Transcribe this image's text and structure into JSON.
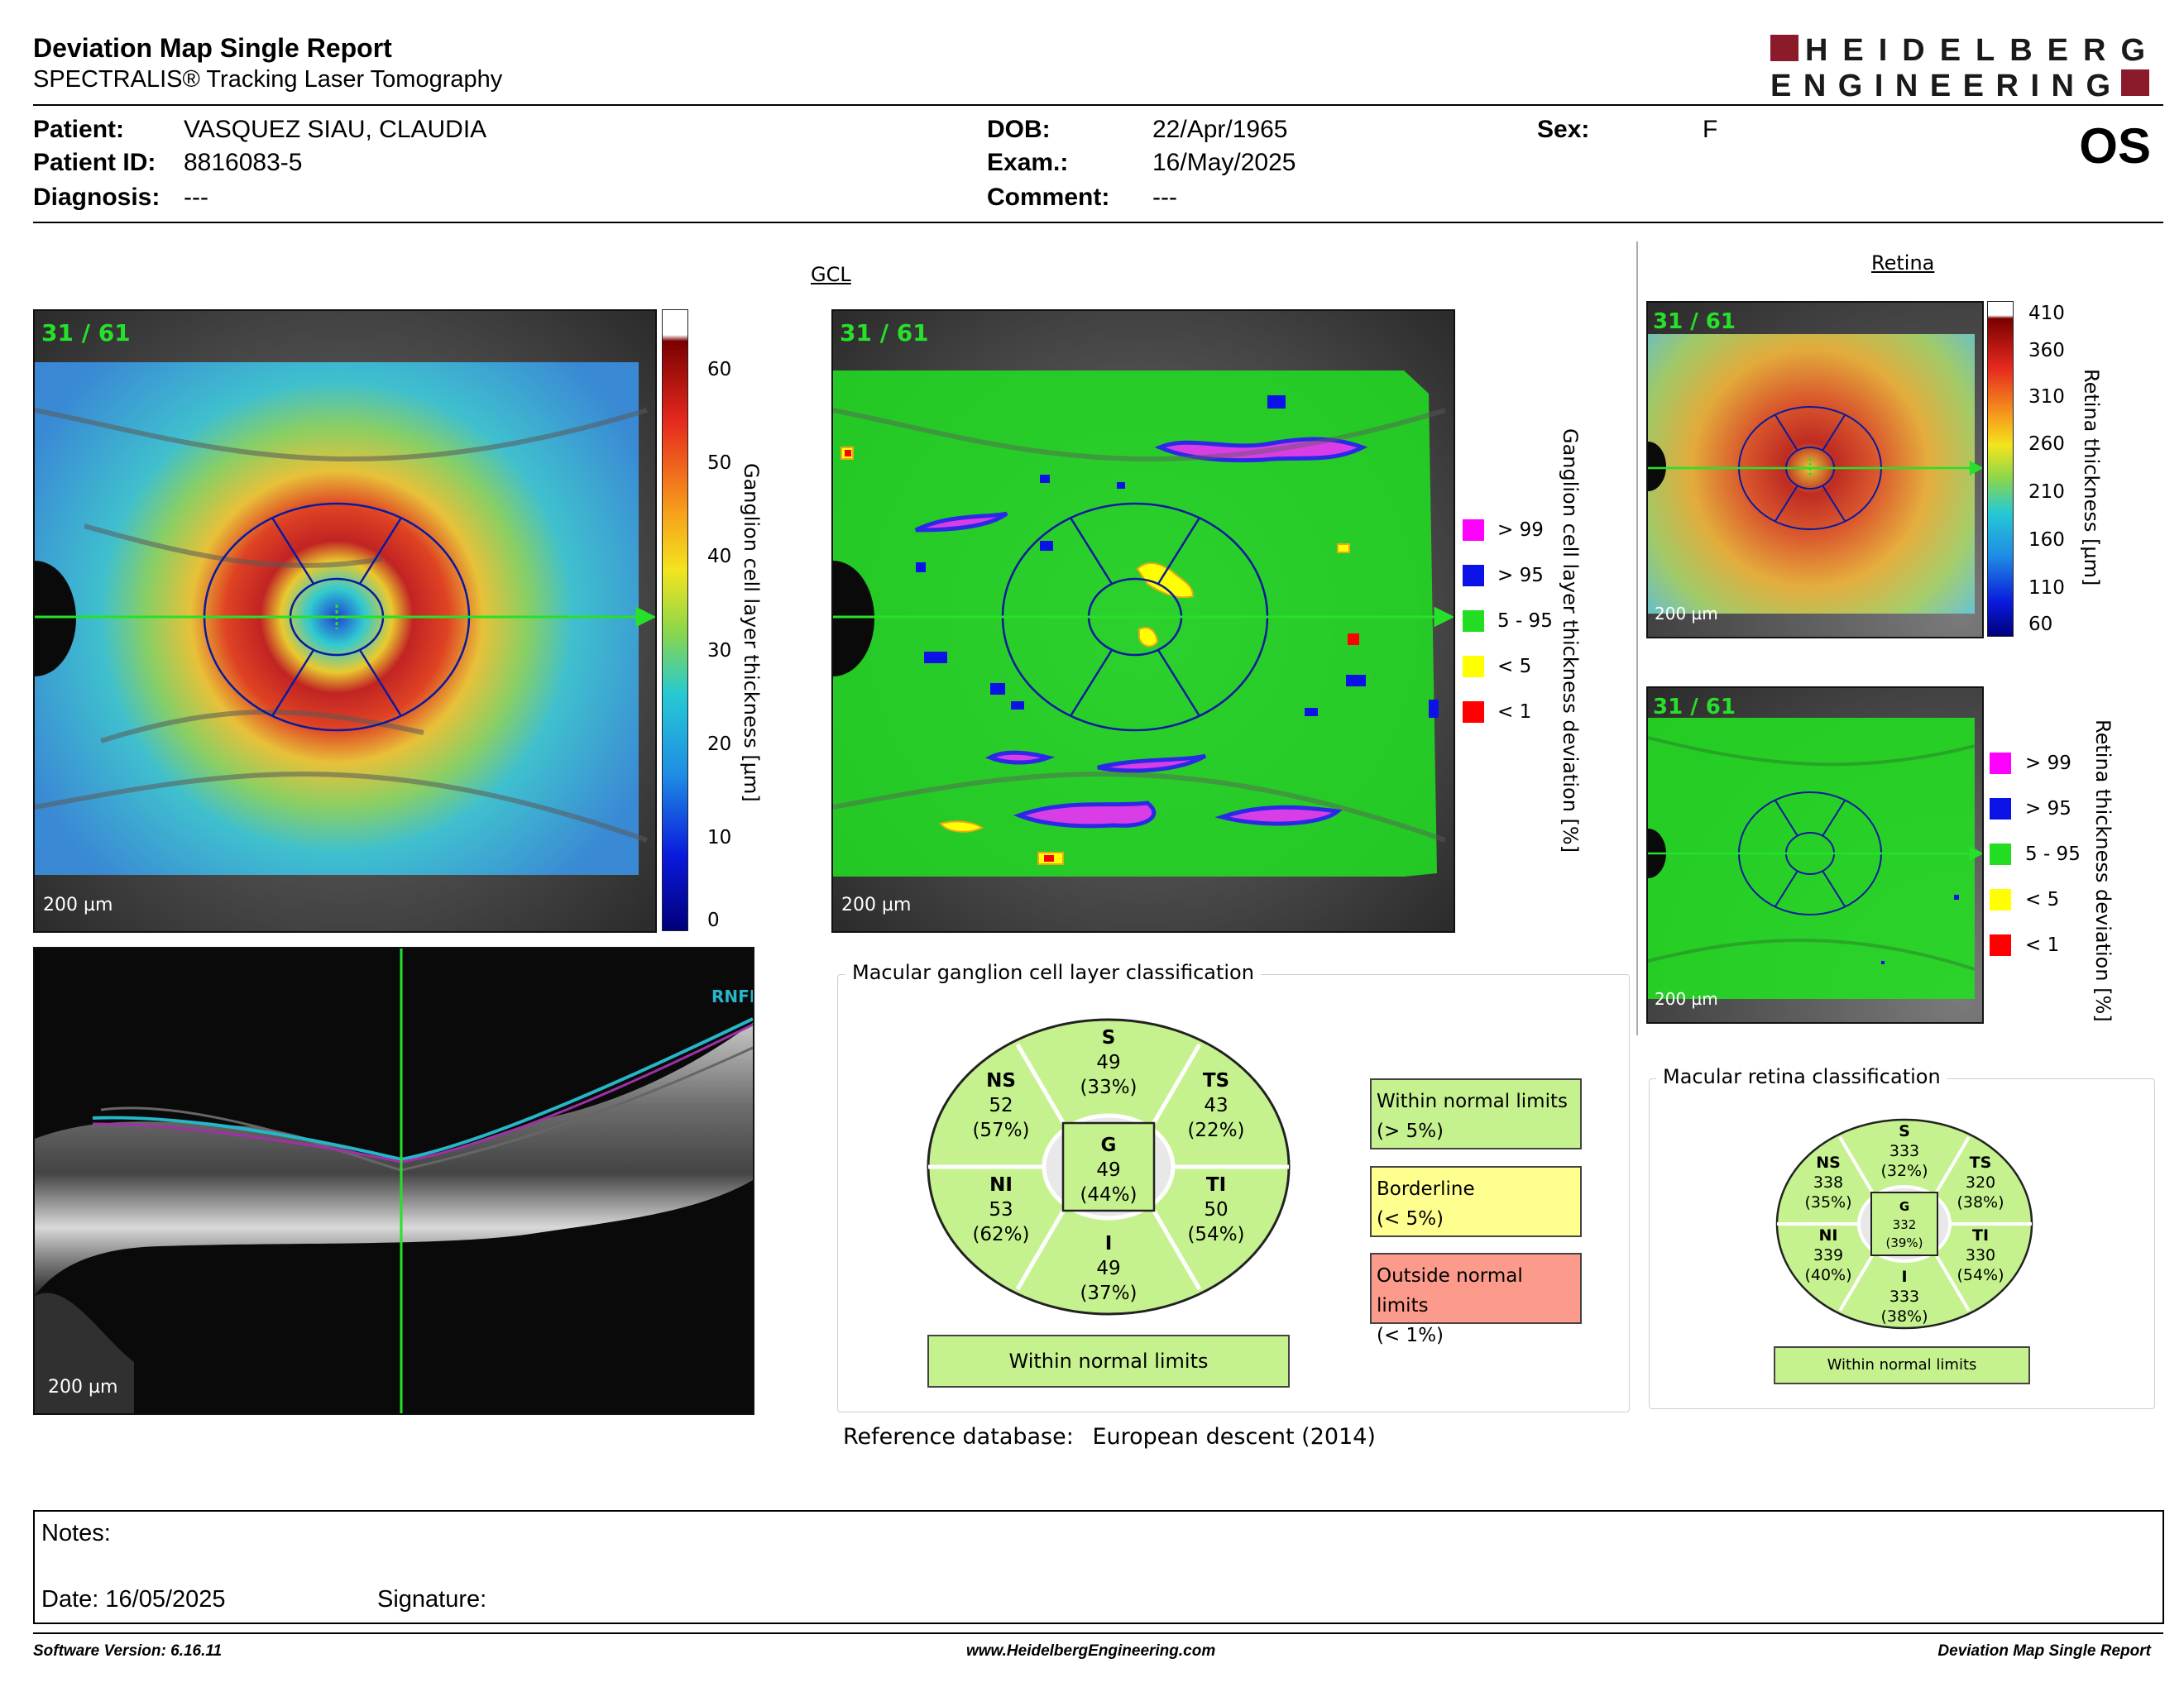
{
  "header": {
    "title": "Deviation Map Single Report",
    "subtitle": "SPECTRALIS® Tracking Laser Tomography",
    "logo_line1": "HEIDELBERG",
    "logo_line2": "ENGINEERING",
    "eye": "OS"
  },
  "patient": {
    "patient_label": "Patient:",
    "patient_value": "VASQUEZ SIAU, CLAUDIA",
    "id_label": "Patient ID:",
    "id_value": "8816083-5",
    "diagnosis_label": "Diagnosis:",
    "diagnosis_value": "---",
    "dob_label": "DOB:",
    "dob_value": "22/Apr/1965",
    "exam_label": "Exam.:",
    "exam_value": "16/May/2025",
    "comment_label": "Comment:",
    "comment_value": "---",
    "sex_label": "Sex:",
    "sex_value": "F"
  },
  "gcl": {
    "section_title": "GCL",
    "counter": "31 / 61",
    "scale_label": "200 µm",
    "thickness_ticks": [
      "60",
      "50",
      "40",
      "30",
      "20",
      "10",
      "0"
    ],
    "thickness_axis_label": "Ganglion cell layer thickness [µm]",
    "deviation_axis_label": "Ganglion cell layer thickness deviation [%]",
    "legend": [
      {
        "label": "> 99",
        "color": "#ff00ff"
      },
      {
        "label": "> 95",
        "color": "#0a12e6"
      },
      {
        "label": "5 - 95",
        "color": "#22dd22"
      },
      {
        "label": "< 5",
        "color": "#ffff00"
      },
      {
        "label": "< 1",
        "color": "#ff0000"
      }
    ]
  },
  "bscan": {
    "layer_label": "RNFL",
    "scale_label": "200 µm"
  },
  "retina": {
    "section_title": "Retina",
    "counter": "31 / 61",
    "scale_label": "200 µm",
    "thickness_ticks": [
      "410",
      "360",
      "310",
      "260",
      "210",
      "160",
      "110",
      "60"
    ],
    "thickness_axis_label": "Retina thickness [µm]",
    "deviation_axis_label": "Retina thickness deviation [%]",
    "legend": [
      {
        "label": "> 99",
        "color": "#ff00ff"
      },
      {
        "label": "> 95",
        "color": "#0a12e6"
      },
      {
        "label": "5 - 95",
        "color": "#22dd22"
      },
      {
        "label": "< 5",
        "color": "#ffff00"
      },
      {
        "label": "< 1",
        "color": "#ff0000"
      }
    ]
  },
  "gcl_classification": {
    "title": "Macular ganglion cell layer classification",
    "sectors": {
      "S": {
        "name": "S",
        "value": "49",
        "pct": "(33%)"
      },
      "NS": {
        "name": "NS",
        "value": "52",
        "pct": "(57%)"
      },
      "TS": {
        "name": "TS",
        "value": "43",
        "pct": "(22%)"
      },
      "G": {
        "name": "G",
        "value": "49",
        "pct": "(44%)"
      },
      "NI": {
        "name": "NI",
        "value": "53",
        "pct": "(62%)"
      },
      "TI": {
        "name": "TI",
        "value": "50",
        "pct": "(54%)"
      },
      "I": {
        "name": "I",
        "value": "49",
        "pct": "(37%)"
      }
    },
    "result": "Within normal limits",
    "legend": {
      "within_1": "Within normal limits",
      "within_2": "(> 5%)",
      "border_1": "Borderline",
      "border_2": "(< 5%)",
      "outside_1": "Outside normal limits",
      "outside_2": "(< 1%)"
    },
    "colors": {
      "within": "#c5f28e",
      "borderline": "#ffff8f",
      "outside": "#fc9a8b"
    }
  },
  "retina_classification": {
    "title": "Macular retina classification",
    "sectors": {
      "S": {
        "name": "S",
        "value": "333",
        "pct": "(32%)"
      },
      "NS": {
        "name": "NS",
        "value": "338",
        "pct": "(35%)"
      },
      "TS": {
        "name": "TS",
        "value": "320",
        "pct": "(38%)"
      },
      "G": {
        "name": "G",
        "value": "332",
        "pct": "(39%)"
      },
      "NI": {
        "name": "NI",
        "value": "339",
        "pct": "(40%)"
      },
      "TI": {
        "name": "TI",
        "value": "330",
        "pct": "(54%)"
      },
      "I": {
        "name": "I",
        "value": "333",
        "pct": "(38%)"
      }
    },
    "result": "Within normal limits"
  },
  "reference": {
    "label": "Reference database",
    "colon": ":",
    "value": "European descent (2014)"
  },
  "notes": {
    "label": "Notes:",
    "date_label": "Date:",
    "date_value": "16/05/2025",
    "signature_label": "Signature:"
  },
  "footer": {
    "software": "Software Version: 6.16.11",
    "website": "www.HeidelbergEngineering.com",
    "report": "Deviation Map Single Report"
  }
}
